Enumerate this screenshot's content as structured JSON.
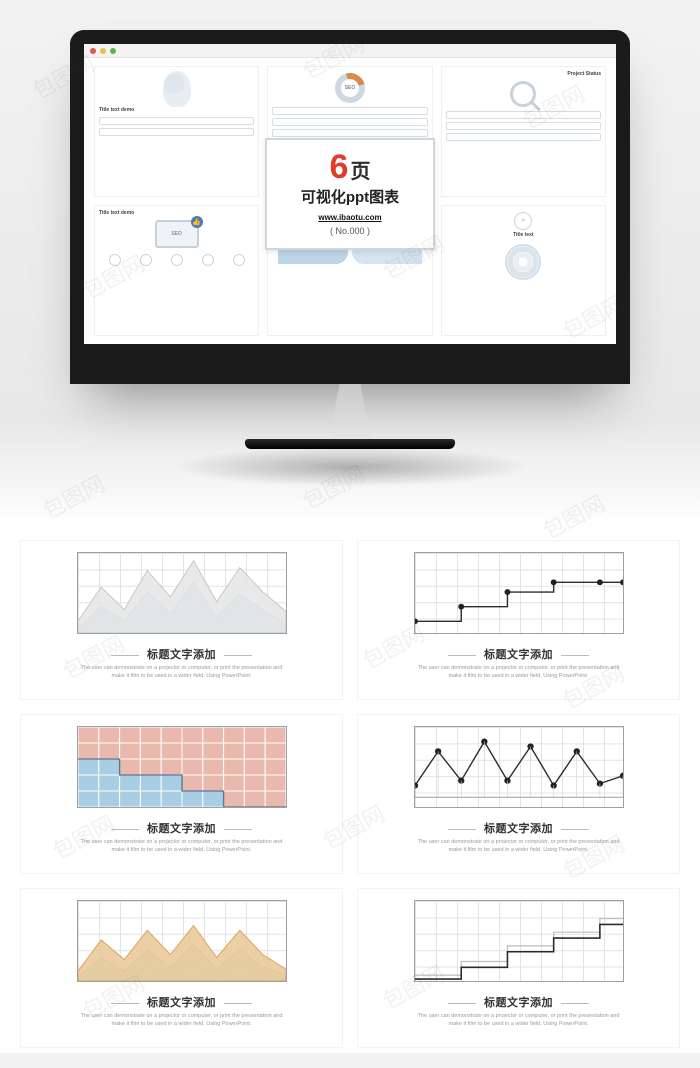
{
  "watermark_text": "包图网",
  "monitor": {
    "traffic_light_colors": [
      "#e2574c",
      "#e8c04c",
      "#5fb14f"
    ],
    "overlay": {
      "big_number": "6",
      "big_suffix": "页",
      "line2": "可视化ppt图表",
      "url": "www.ibaotu.com",
      "no_label": "( No.000 )",
      "border_color": "#cfd6dc",
      "number_color": "#e13b2a"
    },
    "cells": [
      {
        "title": "Title text demo",
        "kind": "head"
      },
      {
        "title": "",
        "kind": "donut",
        "center": "SEO"
      },
      {
        "title": "Project Status",
        "kind": "magnifier"
      },
      {
        "title": "Title text demo",
        "kind": "laptop",
        "badge": "SEO"
      },
      {
        "title": "",
        "kind": "arrows",
        "colors": [
          "#cfe0ec",
          "#e9c7a8",
          "#bcd6e8",
          "#d7e3ee"
        ]
      },
      {
        "title": "Title text",
        "kind": "concentric"
      }
    ]
  },
  "slide_common": {
    "title": "标题文字添加",
    "subtitle": "The user can demonstrate on a projector or computer, or print the presentation and make it film to be used in a wider field. Using PowerPoint.",
    "grid_cols": 10,
    "grid_rows": 5,
    "grid_color": "#e3e3e3",
    "border_color": "#9aa0a6",
    "title_fontsize": 11,
    "subtitle_fontsize": 5.5
  },
  "slides": [
    {
      "id": "slide-1",
      "type": "area-double",
      "series": [
        {
          "color": "#c6c6c6",
          "fill": "#e7e7e7",
          "fill_opacity": 0.9,
          "points": [
            [
              0,
              70
            ],
            [
              1,
              35
            ],
            [
              2,
              58
            ],
            [
              3,
              18
            ],
            [
              4,
              45
            ],
            [
              5,
              8
            ],
            [
              6,
              50
            ],
            [
              7,
              15
            ],
            [
              8,
              40
            ],
            [
              9,
              60
            ]
          ]
        },
        {
          "color": "#6fa7c7",
          "fill": "#a9cde2",
          "fill_opacity": 0.85,
          "points": [
            [
              0,
              78
            ],
            [
              1,
              55
            ],
            [
              2,
              70
            ],
            [
              3,
              40
            ],
            [
              4,
              62
            ],
            [
              5,
              30
            ],
            [
              6,
              66
            ],
            [
              7,
              42
            ],
            [
              8,
              58
            ],
            [
              9,
              72
            ]
          ]
        }
      ],
      "y_max": 82,
      "x_max": 9
    },
    {
      "id": "slide-2",
      "type": "step-line",
      "series": [
        {
          "color": "#2b2b2b",
          "stroke_width": 1.4,
          "marker": "circle",
          "marker_size": 3,
          "steps": [
            [
              0,
              70
            ],
            [
              2,
              55
            ],
            [
              4,
              40
            ],
            [
              6,
              30
            ],
            [
              8,
              30
            ],
            [
              9,
              30
            ]
          ]
        }
      ],
      "y_max": 82,
      "x_max": 9
    },
    {
      "id": "slide-3",
      "type": "stacked-block",
      "bg_rows": 5,
      "bg_cols": 10,
      "top_color": "#e9b9ad",
      "bottom_color": "#a9cde2",
      "border": "#ffffff",
      "step_profile": [
        2,
        2,
        3,
        3,
        3,
        4,
        4,
        5,
        5,
        5
      ]
    },
    {
      "id": "slide-4",
      "type": "line-markers",
      "series": [
        {
          "color": "#2b2b2b",
          "stroke_width": 1.4,
          "marker": "circle",
          "marker_size": 3.2,
          "points": [
            [
              0,
              60
            ],
            [
              1,
              25
            ],
            [
              2,
              55
            ],
            [
              3,
              15
            ],
            [
              4,
              55
            ],
            [
              5,
              20
            ],
            [
              6,
              60
            ],
            [
              7,
              25
            ],
            [
              8,
              58
            ],
            [
              9,
              50
            ]
          ]
        }
      ],
      "baseline_y": 72,
      "y_max": 82,
      "x_max": 9
    },
    {
      "id": "slide-5",
      "type": "area-multi",
      "series": [
        {
          "color": "#d6a45c",
          "fill": "#eacb9a",
          "fill_opacity": 0.9,
          "points": [
            [
              0,
              72
            ],
            [
              1,
              40
            ],
            [
              2,
              60
            ],
            [
              3,
              30
            ],
            [
              4,
              55
            ],
            [
              5,
              25
            ],
            [
              6,
              58
            ],
            [
              7,
              30
            ],
            [
              8,
              55
            ],
            [
              9,
              70
            ]
          ]
        },
        {
          "color": "#6fa7c7",
          "fill": "#a9cde2",
          "fill_opacity": 0.85,
          "points": [
            [
              0,
              78
            ],
            [
              1,
              58
            ],
            [
              2,
              72
            ],
            [
              3,
              50
            ],
            [
              4,
              68
            ],
            [
              5,
              45
            ],
            [
              6,
              70
            ],
            [
              7,
              50
            ],
            [
              8,
              68
            ],
            [
              9,
              76
            ]
          ]
        },
        {
          "color": "#9a9a9a",
          "fill": "#d9d9d9",
          "fill_opacity": 0.8,
          "points": [
            [
              0,
              80
            ],
            [
              1,
              70
            ],
            [
              2,
              78
            ],
            [
              3,
              66
            ],
            [
              4,
              76
            ],
            [
              5,
              62
            ],
            [
              6,
              78
            ],
            [
              7,
              66
            ],
            [
              8,
              76
            ],
            [
              9,
              80
            ]
          ]
        }
      ],
      "y_max": 82,
      "x_max": 9
    },
    {
      "id": "slide-6",
      "type": "step-outline",
      "series": [
        {
          "color": "#bcbcbc",
          "stroke_width": 1.2,
          "steps": [
            [
              0,
              76
            ],
            [
              2,
              62
            ],
            [
              3,
              62
            ],
            [
              4,
              46
            ],
            [
              6,
              32
            ],
            [
              8,
              18
            ],
            [
              9,
              18
            ]
          ]
        },
        {
          "color": "#2b2b2b",
          "stroke_width": 1.6,
          "steps": [
            [
              0,
              80
            ],
            [
              2,
              68
            ],
            [
              4,
              52
            ],
            [
              6,
              38
            ],
            [
              8,
              24
            ],
            [
              9,
              24
            ]
          ]
        }
      ],
      "y_max": 82,
      "x_max": 9
    }
  ]
}
